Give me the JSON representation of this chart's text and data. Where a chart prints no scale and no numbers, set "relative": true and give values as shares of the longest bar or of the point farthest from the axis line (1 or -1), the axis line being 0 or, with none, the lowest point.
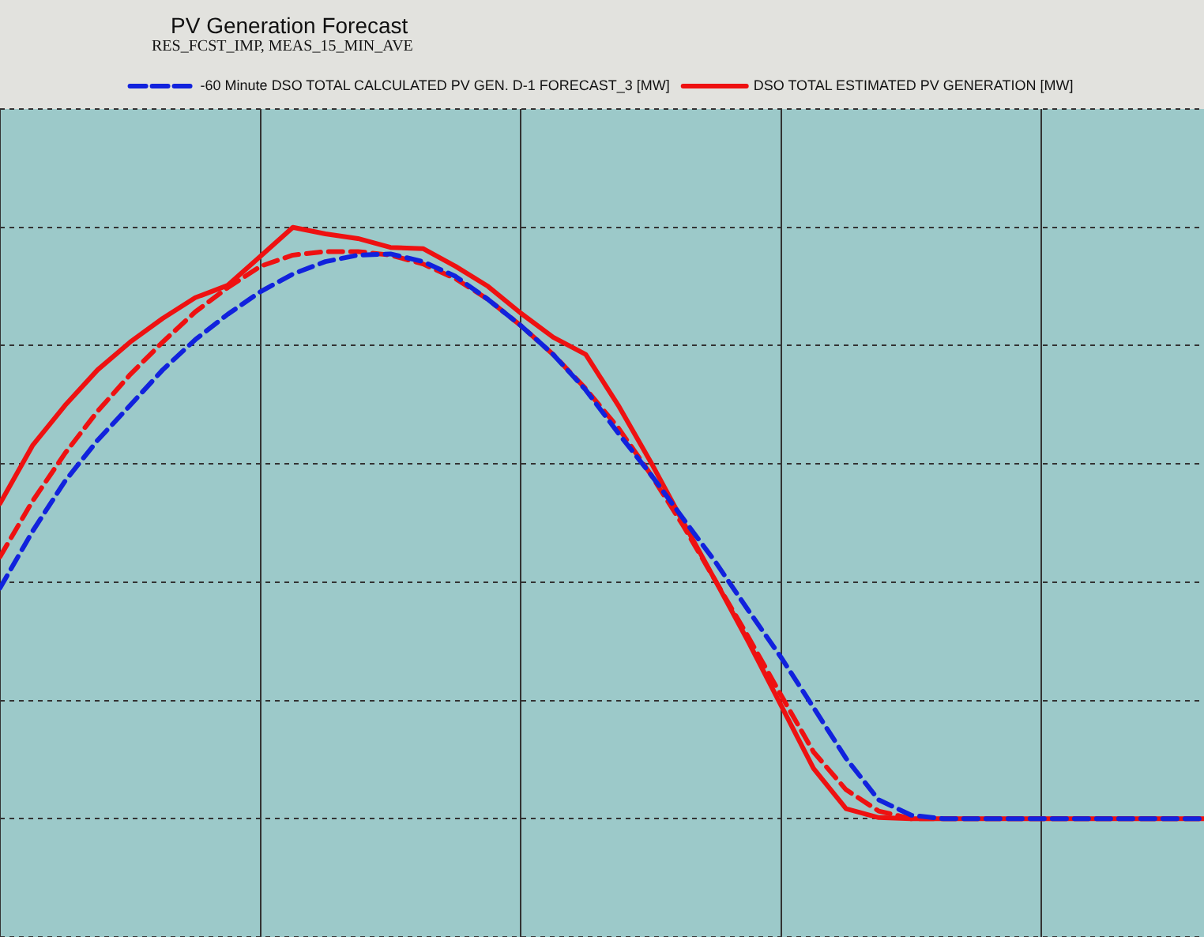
{
  "chart_data": {
    "type": "line",
    "title": "PV Generation Forecast",
    "subtitle": "RES_FCST_IMP, MEAS_15_MIN_AVE",
    "relative": true,
    "grid": true,
    "legend": "top",
    "marker": "none",
    "categories": [
      null,
      null,
      null,
      null,
      null,
      null,
      null,
      null,
      null,
      null,
      null,
      null,
      null,
      null,
      null,
      null,
      null,
      null,
      null,
      null,
      null,
      null,
      null,
      null,
      null,
      null,
      null,
      null,
      null,
      null,
      null,
      null,
      null,
      null,
      null,
      null,
      null,
      null
    ],
    "series": [
      {
        "name": "DSO TOTAL ESTIMATED PV GENERATION [MW]",
        "color": "#ee1111",
        "line_style": "solid",
        "values": [
          0.533,
          0.631,
          0.699,
          0.759,
          0.806,
          0.846,
          0.881,
          0.902,
          0.951,
          1,
          0.989,
          0.981,
          0.966,
          0.964,
          0.934,
          0.9,
          0.855,
          0.814,
          0.785,
          0.699,
          0.603,
          0.501,
          0.401,
          0.299,
          0.192,
          0.085,
          0.017,
          0.002,
          0,
          0,
          0,
          0,
          0,
          0,
          0,
          0,
          0,
          0
        ]
      },
      {
        "color": "#ee1111",
        "line_style": "dashed",
        "values": [
          0.443,
          0.537,
          0.618,
          0.689,
          0.751,
          0.806,
          0.857,
          0.898,
          0.934,
          0.953,
          0.959,
          0.959,
          0.953,
          0.938,
          0.913,
          0.878,
          0.834,
          0.785,
          0.727,
          0.661,
          0.582,
          0.495,
          0.401,
          0.307,
          0.209,
          0.113,
          0.049,
          0.013,
          0,
          0,
          0,
          0,
          0,
          0,
          0,
          0,
          0,
          0
        ]
      },
      {
        "name": "-60 Minute DSO TOTAL CALCULATED PV GEN. D-1 FORECAST_3 [MW]",
        "color": "#1122dd",
        "line_style": "dashed",
        "values": [
          0.39,
          0.486,
          0.571,
          0.64,
          0.699,
          0.759,
          0.81,
          0.853,
          0.891,
          0.921,
          0.942,
          0.953,
          0.955,
          0.942,
          0.917,
          0.878,
          0.834,
          0.785,
          0.725,
          0.652,
          0.582,
          0.507,
          0.433,
          0.352,
          0.273,
          0.188,
          0.102,
          0.032,
          0.006,
          0,
          0,
          0,
          0,
          0,
          0,
          0,
          0,
          0
        ]
      }
    ]
  }
}
